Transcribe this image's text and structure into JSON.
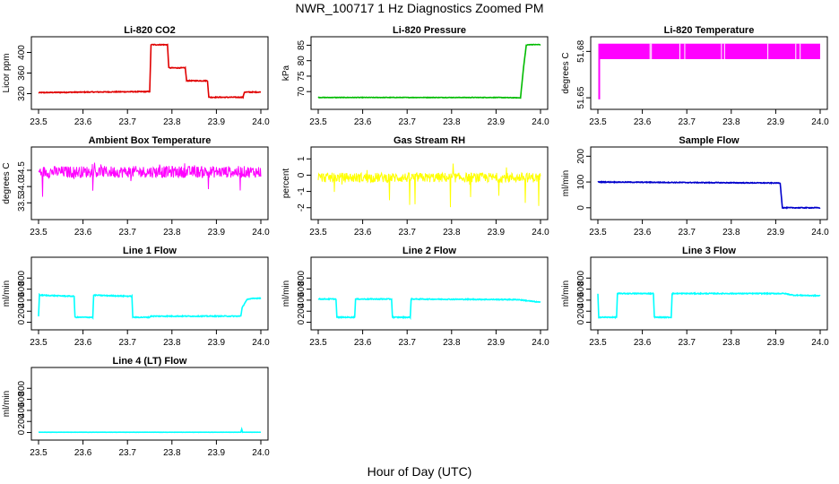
{
  "figure": {
    "title": "NWR_100717  1 Hz Diagnostics Zoomed PM",
    "xlabel": "Hour of Day (UTC)"
  },
  "chart_data": [
    {
      "type": "line",
      "title": "Li-820 CO2",
      "ylabel": "Licor ppm",
      "color": "#e00000",
      "xlim": [
        23.5,
        24.0
      ],
      "ylim": [
        300,
        420
      ],
      "xticks": [
        "23.5",
        "23.6",
        "23.7",
        "23.8",
        "23.9",
        "24.0"
      ],
      "yticks": [
        {
          "v": 320,
          "l": "320"
        },
        {
          "v": 360,
          "l": "360"
        },
        {
          "v": 400,
          "l": "400"
        }
      ],
      "noise": 0.8,
      "rotate_y": true,
      "series": [
        {
          "x": [
            23.5,
            23.6,
            23.75,
            23.753,
            23.79,
            23.793,
            23.83,
            23.833,
            23.88,
            23.883,
            23.96,
            23.963,
            24.0
          ],
          "y": [
            322,
            323,
            324,
            415,
            415,
            370,
            370,
            345,
            345,
            313,
            313,
            323,
            323
          ]
        }
      ]
    },
    {
      "type": "line",
      "title": "Li-820 Pressure",
      "ylabel": "kPa",
      "color": "#00bb00",
      "xlim": [
        23.5,
        24.0
      ],
      "ylim": [
        66,
        86
      ],
      "xticks": [
        "23.5",
        "23.6",
        "23.7",
        "23.8",
        "23.9",
        "24.0"
      ],
      "yticks": [
        {
          "v": 70,
          "l": "70"
        },
        {
          "v": 75,
          "l": "75"
        },
        {
          "v": 80,
          "l": "80"
        },
        {
          "v": 85,
          "l": "85"
        }
      ],
      "noise": 0.08,
      "rotate_y": true,
      "series": [
        {
          "x": [
            23.5,
            23.9,
            23.95,
            23.955,
            23.962,
            23.968,
            23.975,
            24.0
          ],
          "y": [
            68.1,
            68.1,
            68.0,
            68.0,
            78,
            85,
            85.2,
            85.2
          ]
        }
      ]
    },
    {
      "type": "band",
      "title": "Li-820 Temperature",
      "ylabel": "degrees C",
      "color": "#ff00ff",
      "xlim": [
        23.5,
        24.0
      ],
      "ylim": [
        51.646,
        51.686
      ],
      "xticks": [
        "23.5",
        "23.6",
        "23.7",
        "23.8",
        "23.9",
        "24.0"
      ],
      "yticks": [
        {
          "v": 51.65,
          "l": "51.65"
        },
        {
          "v": 51.68,
          "l": "51.68"
        }
      ],
      "rotate_y": true,
      "band": {
        "low": 51.675,
        "high": 51.685,
        "x0": 23.505,
        "x1": 24.0,
        "spike_x": 23.503,
        "spike_y": 51.649
      }
    },
    {
      "type": "noise",
      "title": "Ambient Box Temperature",
      "ylabel": "degrees C",
      "color": "#ff00ff",
      "xlim": [
        23.5,
        24.0
      ],
      "ylim": [
        33.15,
        35.05
      ],
      "xticks": [
        "23.5",
        "23.6",
        "23.7",
        "23.8",
        "23.9",
        "24.0"
      ],
      "yticks": [
        {
          "v": 33.5,
          "l": "33.5"
        },
        {
          "v": 34.0,
          "l": "34.0"
        },
        {
          "v": 34.5,
          "l": "34.5"
        }
      ],
      "rotate_y": true,
      "center": 34.45,
      "spread": 0.18,
      "spike_down": 0.9,
      "spike_up": 0.3
    },
    {
      "type": "noise",
      "title": "Gas Stream RH",
      "ylabel": "percent",
      "color": "#ffff00",
      "xlim": [
        23.5,
        24.0
      ],
      "ylim": [
        -2.4,
        1.4
      ],
      "xticks": [
        "23.5",
        "23.6",
        "23.7",
        "23.8",
        "23.9",
        "24.0"
      ],
      "yticks": [
        {
          "v": -2,
          "l": "-2"
        },
        {
          "v": -1,
          "l": "-1"
        },
        {
          "v": 0,
          "l": "0"
        },
        {
          "v": 1,
          "l": "1"
        }
      ],
      "rotate_y": true,
      "center": -0.15,
      "spread": 0.3,
      "spike_down": 1.9,
      "spike_up": 1.2
    },
    {
      "type": "line",
      "title": "Sample Flow",
      "ylabel": "ml/min",
      "color": "#0000cc",
      "xlim": [
        23.5,
        24.0
      ],
      "ylim": [
        -25,
        215
      ],
      "xticks": [
        "23.5",
        "23.6",
        "23.7",
        "23.8",
        "23.9",
        "24.0"
      ],
      "yticks": [
        {
          "v": 0,
          "l": "0"
        },
        {
          "v": 100,
          "l": "100"
        },
        {
          "v": 200,
          "l": "200"
        }
      ],
      "noise": 1.5,
      "rotate_y": true,
      "series": [
        {
          "x": [
            23.5,
            23.7,
            23.91,
            23.915,
            24.0
          ],
          "y": [
            100,
            98,
            96,
            0,
            0
          ]
        }
      ]
    },
    {
      "type": "line",
      "title": "Line 1 Flow",
      "ylabel": "ml/min",
      "color": "#00ffff",
      "xlim": [
        23.5,
        24.0
      ],
      "ylim": [
        -40,
        1080
      ],
      "xticks": [
        "23.5",
        "23.6",
        "23.7",
        "23.8",
        "23.9",
        "24.0"
      ],
      "yticks": [
        {
          "v": 0,
          "l": "0"
        },
        {
          "v": 200,
          "l": "200"
        },
        {
          "v": 400,
          "l": "400"
        },
        {
          "v": 600,
          "l": "600"
        },
        {
          "v": 800,
          "l": "800"
        }
      ],
      "noise": 8,
      "rotate_y": true,
      "series": [
        {
          "x": [
            23.5,
            23.502,
            23.504,
            23.58,
            23.582,
            23.622,
            23.624,
            23.71,
            23.712,
            23.75,
            23.752,
            23.955,
            23.958,
            23.97,
            24.0
          ],
          "y": [
            100,
            500,
            490,
            470,
            90,
            90,
            490,
            470,
            90,
            90,
            110,
            110,
            270,
            420,
            440
          ]
        }
      ]
    },
    {
      "type": "line",
      "title": "Line 2 Flow",
      "ylabel": "ml/min",
      "color": "#00ffff",
      "xlim": [
        23.5,
        24.0
      ],
      "ylim": [
        -40,
        1080
      ],
      "xticks": [
        "23.5",
        "23.6",
        "23.7",
        "23.8",
        "23.9",
        "24.0"
      ],
      "yticks": [
        {
          "v": 0,
          "l": "0"
        },
        {
          "v": 200,
          "l": "200"
        },
        {
          "v": 400,
          "l": "400"
        },
        {
          "v": 600,
          "l": "600"
        },
        {
          "v": 800,
          "l": "800"
        }
      ],
      "noise": 8,
      "rotate_y": true,
      "series": [
        {
          "x": [
            23.5,
            23.54,
            23.542,
            23.582,
            23.584,
            23.665,
            23.667,
            23.707,
            23.709,
            23.95,
            24.0
          ],
          "y": [
            420,
            420,
            90,
            90,
            420,
            420,
            90,
            90,
            420,
            410,
            360
          ]
        }
      ]
    },
    {
      "type": "line",
      "title": "Line 3 Flow",
      "ylabel": "ml/min",
      "color": "#00ffff",
      "xlim": [
        23.5,
        24.0
      ],
      "ylim": [
        -40,
        1080
      ],
      "xticks": [
        "23.5",
        "23.6",
        "23.7",
        "23.8",
        "23.9",
        "24.0"
      ],
      "yticks": [
        {
          "v": 0,
          "l": "0"
        },
        {
          "v": 200,
          "l": "200"
        },
        {
          "v": 400,
          "l": "400"
        },
        {
          "v": 600,
          "l": "600"
        },
        {
          "v": 800,
          "l": "800"
        }
      ],
      "noise": 8,
      "rotate_y": true,
      "series": [
        {
          "x": [
            23.5,
            23.502,
            23.504,
            23.542,
            23.544,
            23.625,
            23.627,
            23.665,
            23.667,
            23.92,
            23.94,
            24.0
          ],
          "y": [
            510,
            90,
            90,
            90,
            520,
            520,
            90,
            90,
            520,
            520,
            490,
            480
          ]
        }
      ]
    },
    {
      "type": "line",
      "title": "Line 4 (LT) Flow",
      "ylabel": "ml/min",
      "color": "#00ffff",
      "xlim": [
        23.5,
        24.0
      ],
      "ylim": [
        -40,
        1080
      ],
      "xticks": [
        "23.5",
        "23.6",
        "23.7",
        "23.8",
        "23.9",
        "24.0"
      ],
      "yticks": [
        {
          "v": 0,
          "l": "0"
        },
        {
          "v": 200,
          "l": "200"
        },
        {
          "v": 400,
          "l": "400"
        },
        {
          "v": 600,
          "l": "600"
        },
        {
          "v": 800,
          "l": "800"
        }
      ],
      "noise": 1,
      "rotate_y": true,
      "series": [
        {
          "x": [
            23.5,
            23.955,
            23.957,
            23.959,
            24.0
          ],
          "y": [
            5,
            5,
            60,
            5,
            5
          ]
        }
      ]
    }
  ]
}
